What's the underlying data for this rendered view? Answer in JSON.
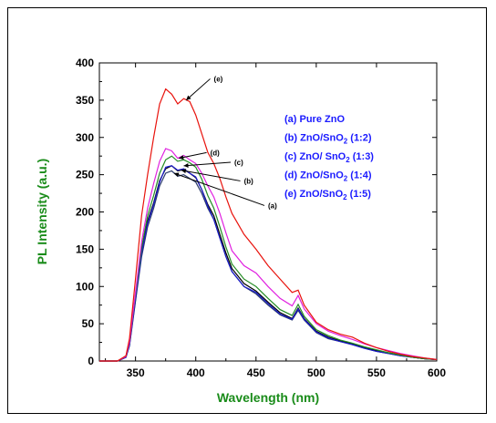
{
  "chart_data": {
    "type": "line",
    "title": "",
    "xlabel": "Wavelength (nm)",
    "ylabel": "PL Intensity (a.u.)",
    "xlim": [
      320,
      600
    ],
    "ylim": [
      0,
      400
    ],
    "xticks": [
      350,
      400,
      450,
      500,
      550,
      600
    ],
    "yticks": [
      0,
      50,
      100,
      150,
      200,
      250,
      300,
      350,
      400
    ],
    "axis_label_color": "#1a8c1a",
    "legend_position": "top-right",
    "legend": [
      {
        "id": "a",
        "prefix": "(a) Pure ZnO",
        "sub": "",
        "suffix": ""
      },
      {
        "id": "b",
        "prefix": "(b) ZnO/SnO",
        "sub": "2",
        "suffix": " (1:2)"
      },
      {
        "id": "c",
        "prefix": "(c) ZnO/ SnO",
        "sub": "2",
        "suffix": " (1:3)"
      },
      {
        "id": "d",
        "prefix": "(d) ZnO/SnO",
        "sub": "2",
        "suffix": " (1:4)"
      },
      {
        "id": "e",
        "prefix": "(e) ZnO/SnO",
        "sub": "2",
        "suffix": " (1:5)"
      }
    ],
    "series": [
      {
        "id": "a",
        "color": "#2a3a6a",
        "x": [
          320,
          335,
          342,
          345,
          350,
          355,
          360,
          365,
          370,
          375,
          380,
          385,
          390,
          395,
          400,
          405,
          410,
          415,
          420,
          425,
          430,
          440,
          450,
          460,
          470,
          480,
          485,
          490,
          500,
          510,
          520,
          530,
          540,
          550,
          560,
          570,
          580,
          590,
          600
        ],
        "y": [
          0,
          0,
          5,
          20,
          80,
          140,
          180,
          205,
          235,
          252,
          255,
          248,
          250,
          245,
          240,
          225,
          205,
          190,
          165,
          140,
          120,
          100,
          90,
          75,
          62,
          55,
          68,
          55,
          38,
          30,
          26,
          22,
          17,
          13,
          10,
          7,
          5,
          3,
          2
        ]
      },
      {
        "id": "b",
        "color": "#000000",
        "x": [
          320,
          335,
          342,
          345,
          350,
          355,
          360,
          365,
          370,
          375,
          380,
          385,
          390,
          395,
          400,
          405,
          410,
          415,
          420,
          425,
          430,
          440,
          450,
          460,
          470,
          480,
          485,
          490,
          500,
          510,
          520,
          530,
          540,
          550,
          560,
          570,
          580,
          590,
          600
        ],
        "y": [
          0,
          0,
          5,
          22,
          85,
          148,
          188,
          212,
          242,
          258,
          262,
          255,
          257,
          252,
          246,
          230,
          210,
          195,
          170,
          145,
          124,
          104,
          94,
          79,
          65,
          57,
          71,
          57,
          40,
          32,
          27,
          23,
          18,
          14,
          11,
          8,
          5,
          3,
          2
        ]
      },
      {
        "id": "c",
        "color": "#1a1acc",
        "x": [
          320,
          335,
          342,
          345,
          350,
          355,
          360,
          365,
          370,
          375,
          380,
          385,
          390,
          395,
          400,
          405,
          410,
          415,
          420,
          425,
          430,
          440,
          450,
          460,
          470,
          480,
          485,
          490,
          500,
          510,
          520,
          530,
          540,
          550,
          560,
          570,
          580,
          590,
          600
        ],
        "y": [
          0,
          0,
          5,
          21,
          82,
          145,
          185,
          210,
          240,
          260,
          262,
          256,
          258,
          252,
          247,
          230,
          208,
          190,
          165,
          140,
          120,
          100,
          92,
          77,
          63,
          56,
          70,
          56,
          39,
          31,
          26,
          22,
          17,
          13,
          10,
          7,
          5,
          3,
          2
        ]
      },
      {
        "id": "d",
        "color": "#228b22",
        "x": [
          320,
          335,
          342,
          345,
          350,
          355,
          360,
          365,
          370,
          375,
          380,
          385,
          390,
          395,
          400,
          405,
          410,
          415,
          420,
          425,
          430,
          440,
          450,
          460,
          470,
          480,
          485,
          490,
          500,
          510,
          520,
          530,
          540,
          550,
          560,
          570,
          580,
          590,
          600
        ],
        "y": [
          0,
          0,
          6,
          24,
          88,
          152,
          195,
          222,
          252,
          270,
          275,
          268,
          270,
          266,
          260,
          244,
          222,
          205,
          180,
          153,
          130,
          110,
          100,
          84,
          69,
          61,
          76,
          60,
          42,
          34,
          28,
          24,
          19,
          15,
          11,
          8,
          5,
          3,
          2
        ]
      },
      {
        "id": "e2",
        "color": "#e020e0",
        "x": [
          320,
          335,
          342,
          345,
          350,
          355,
          360,
          365,
          370,
          375,
          380,
          385,
          390,
          395,
          400,
          405,
          410,
          415,
          420,
          425,
          430,
          440,
          450,
          460,
          470,
          480,
          485,
          490,
          500,
          510,
          520,
          530,
          540,
          550,
          560,
          570,
          580,
          590,
          600
        ],
        "y": [
          0,
          0,
          6,
          25,
          92,
          160,
          205,
          238,
          268,
          285,
          282,
          272,
          276,
          270,
          265,
          252,
          235,
          220,
          198,
          172,
          148,
          128,
          118,
          100,
          84,
          74,
          88,
          70,
          50,
          40,
          34,
          29,
          23,
          18,
          14,
          10,
          7,
          4,
          2
        ]
      },
      {
        "id": "e",
        "color": "#e8120c",
        "x": [
          320,
          335,
          342,
          345,
          350,
          355,
          360,
          365,
          370,
          375,
          380,
          385,
          390,
          395,
          400,
          405,
          410,
          415,
          420,
          425,
          430,
          440,
          450,
          460,
          470,
          480,
          485,
          490,
          500,
          510,
          520,
          530,
          540,
          550,
          560,
          570,
          580,
          590,
          600
        ],
        "y": [
          0,
          0,
          7,
          30,
          110,
          195,
          250,
          300,
          345,
          365,
          358,
          345,
          352,
          348,
          330,
          305,
          280,
          265,
          245,
          220,
          198,
          170,
          150,
          128,
          110,
          92,
          95,
          75,
          52,
          42,
          36,
          32,
          24,
          18,
          13,
          9,
          6,
          4,
          2
        ]
      }
    ],
    "annotations": [
      {
        "text": "(e)",
        "x": 415,
        "y": 375,
        "ax": 392,
        "ay": 350
      },
      {
        "text": "(d)",
        "x": 412,
        "y": 276,
        "ax": 386,
        "ay": 272
      },
      {
        "text": "(c)",
        "x": 432,
        "y": 263,
        "ax": 390,
        "ay": 262
      },
      {
        "text": "(b)",
        "x": 440,
        "y": 238,
        "ax": 388,
        "ay": 256
      },
      {
        "text": "(a)",
        "x": 460,
        "y": 205,
        "ax": 382,
        "ay": 252
      }
    ]
  }
}
